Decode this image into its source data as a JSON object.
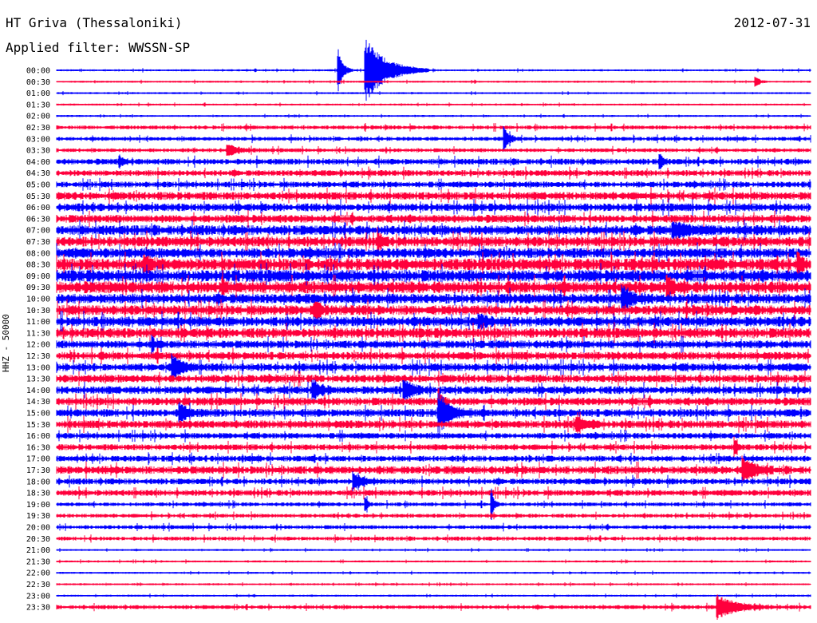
{
  "header": {
    "station": "HT Griva (Thessaloniki)",
    "date": "2012-07-31",
    "filter": "Applied filter: WWSSN-SP"
  },
  "side_label": "HHZ - 50000",
  "colors": {
    "even_rows": "#0000ff",
    "odd_rows": "#ff003c"
  },
  "chart_data": {
    "type": "line",
    "title": "HT Griva (Thessaloniki)",
    "subtitle": "Applied filter: WWSSN-SP",
    "ylabel": "HHZ - 50000",
    "xlabel": "",
    "row_labels": [
      "00:00",
      "00:30",
      "01:00",
      "01:30",
      "02:00",
      "02:30",
      "03:00",
      "03:30",
      "04:00",
      "04:30",
      "05:00",
      "05:30",
      "06:00",
      "06:30",
      "07:00",
      "07:30",
      "08:00",
      "08:30",
      "09:00",
      "09:30",
      "10:00",
      "10:30",
      "11:00",
      "11:30",
      "12:00",
      "12:30",
      "13:00",
      "13:30",
      "14:00",
      "14:30",
      "15:00",
      "15:30",
      "16:00",
      "16:30",
      "17:00",
      "17:30",
      "18:00",
      "18:30",
      "19:00",
      "19:30",
      "20:00",
      "20:30",
      "21:00",
      "21:30",
      "22:00",
      "22:30",
      "23:00",
      "23:30"
    ],
    "row_duration_minutes": 30,
    "x_range_minutes": [
      0,
      30
    ],
    "row_colors": [
      "#0000ff",
      "#ff003c"
    ],
    "noise_level": [
      1,
      1,
      1,
      1,
      1,
      2,
      2,
      2,
      3,
      3,
      3,
      4,
      4,
      4,
      5,
      5,
      5,
      6,
      6,
      6,
      5,
      5,
      5,
      5,
      4,
      4,
      4,
      4,
      4,
      4,
      4,
      4,
      3,
      3,
      3,
      4,
      3,
      3,
      2,
      2,
      2,
      2,
      1,
      1,
      1,
      1,
      1,
      2
    ],
    "events": [
      {
        "row": 0,
        "minute": 11.2,
        "amplitude": 28,
        "duration_minutes": 0.6
      },
      {
        "row": 0,
        "minute": 12.3,
        "amplitude": 40,
        "duration_minutes": 2.5
      },
      {
        "row": 1,
        "minute": 27.8,
        "amplitude": 8,
        "duration_minutes": 0.5
      },
      {
        "row": 6,
        "minute": 17.8,
        "amplitude": 16,
        "duration_minutes": 0.6
      },
      {
        "row": 7,
        "minute": 6.8,
        "amplitude": 7,
        "duration_minutes": 1.3
      },
      {
        "row": 8,
        "minute": 2.5,
        "amplitude": 7,
        "duration_minutes": 0.4
      },
      {
        "row": 8,
        "minute": 24.0,
        "amplitude": 9,
        "duration_minutes": 0.4
      },
      {
        "row": 14,
        "minute": 24.5,
        "amplitude": 8,
        "duration_minutes": 2.0
      },
      {
        "row": 15,
        "minute": 12.8,
        "amplitude": 14,
        "duration_minutes": 0.4
      },
      {
        "row": 17,
        "minute": 3.5,
        "amplitude": 9,
        "duration_minutes": 0.8
      },
      {
        "row": 17,
        "minute": 29.5,
        "amplitude": 14,
        "duration_minutes": 0.5
      },
      {
        "row": 19,
        "minute": 6.6,
        "amplitude": 12,
        "duration_minutes": 0.3
      },
      {
        "row": 19,
        "minute": 24.3,
        "amplitude": 12,
        "duration_minutes": 0.8
      },
      {
        "row": 20,
        "minute": 22.5,
        "amplitude": 12,
        "duration_minutes": 1.3
      },
      {
        "row": 21,
        "minute": 10.3,
        "amplitude": 9,
        "duration_minutes": 0.8
      },
      {
        "row": 22,
        "minute": 16.8,
        "amplitude": 8,
        "duration_minutes": 0.8
      },
      {
        "row": 24,
        "minute": 3.8,
        "amplitude": 10,
        "duration_minutes": 0.3
      },
      {
        "row": 26,
        "minute": 4.6,
        "amplitude": 16,
        "duration_minutes": 1.0
      },
      {
        "row": 28,
        "minute": 10.2,
        "amplitude": 12,
        "duration_minutes": 0.9
      },
      {
        "row": 28,
        "minute": 13.8,
        "amplitude": 12,
        "duration_minutes": 1.1
      },
      {
        "row": 29,
        "minute": 15.2,
        "amplitude": 16,
        "duration_minutes": 0.4
      },
      {
        "row": 30,
        "minute": 15.2,
        "amplitude": 24,
        "duration_minutes": 1.4
      },
      {
        "row": 30,
        "minute": 4.9,
        "amplitude": 12,
        "duration_minutes": 0.9
      },
      {
        "row": 31,
        "minute": 20.7,
        "amplitude": 10,
        "duration_minutes": 1.0
      },
      {
        "row": 33,
        "minute": 27.0,
        "amplitude": 10,
        "duration_minutes": 0.3
      },
      {
        "row": 35,
        "minute": 27.3,
        "amplitude": 14,
        "duration_minutes": 1.5
      },
      {
        "row": 36,
        "minute": 11.8,
        "amplitude": 10,
        "duration_minutes": 1.1
      },
      {
        "row": 38,
        "minute": 17.3,
        "amplitude": 18,
        "duration_minutes": 0.3
      },
      {
        "row": 38,
        "minute": 12.3,
        "amplitude": 10,
        "duration_minutes": 0.3
      },
      {
        "row": 47,
        "minute": 26.3,
        "amplitude": 14,
        "duration_minutes": 2.3
      }
    ]
  }
}
